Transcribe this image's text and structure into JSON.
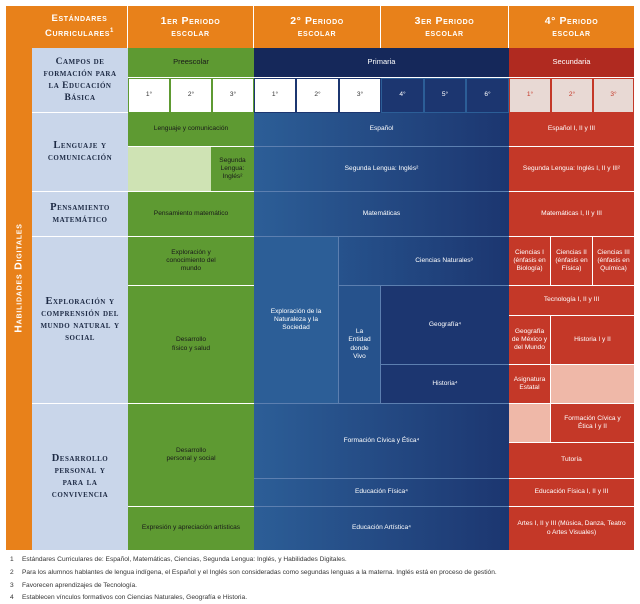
{
  "side_label": "Habilidades Digitales",
  "header": {
    "curriculum_standards": "Estándares Curriculares",
    "curriculum_standards_sup": "1",
    "period1": "1er Periodo escolar",
    "period2": "2° Periodo escolar",
    "period3": "3er Periodo escolar",
    "period4": "4° Periodo escolar"
  },
  "row_labels": {
    "campos": "Campos de formación para la Educación Básica",
    "lenguaje": "Lenguaje y comunicación",
    "pensamiento": "Pensamiento matemático",
    "exploracion": "Exploración y comprensión del mundo natural y social",
    "desarrollo": "Desarrollo personal y para la convivencia"
  },
  "levels": {
    "preescolar": "Preescolar",
    "primaria": "Primaria",
    "secundaria": "Secundaria"
  },
  "grades": {
    "pre": [
      "1°",
      "2°",
      "3°"
    ],
    "pri": [
      "1°",
      "2°",
      "3°",
      "4°",
      "5°",
      "6°"
    ],
    "sec": [
      "1°",
      "2°",
      "3°"
    ]
  },
  "cells": {
    "lenguaje_pre": "Lenguaje y comunicación",
    "espanol_pri": "Español",
    "espanol_sec": "Español I, II y III",
    "segunda_pre": "Segunda Lengua: Inglés²",
    "segunda_pri": "Segunda Lengua: Inglés²",
    "segunda_sec": "Segunda Lengua: Inglés I, II y III²",
    "pensamiento_pre": "Pensamiento matemático",
    "matematicas_pri": "Matemáticas",
    "matematicas_sec": "Matemáticas I, II y III",
    "exploracion_pre": "Exploración y conocimiento del mundo",
    "exploracion_pri": "Exploración de la Naturaleza y la Sociedad",
    "entidad_pri": "La Entidad donde Vivo",
    "ciencias_pri": "Ciencias Naturales³",
    "geografia_pri": "Geografía⁴",
    "historia_pri": "Historia⁴",
    "ciencias1_sec": "Ciencias I (énfasis en Biología)",
    "ciencias2_sec": "Ciencias II (énfasis en Física)",
    "ciencias3_sec": "Ciencias III (énfasis en Química)",
    "tecnologia_sec": "Tecnología I, II y III",
    "geografia_sec": "Geografía de México y del Mundo",
    "historia_sec": "Historia I y II",
    "asignatura_sec": "Asignatura Estatal",
    "desarrollo_fisico_pre": "Desarrollo físico y salud",
    "desarrollo_personal_pre": "Desarrollo personal y social",
    "expresion_pre": "Expresión y apreciación artísticas",
    "formacion_pri": "Formación Cívica y Ética⁴",
    "formacion_sec": "Formación Cívica y Ética I y II",
    "tutoria_sec": "Tutoría",
    "edfisica_pri": "Educación Física⁴",
    "edfisica_sec": "Educación Física I, II y III",
    "edartistica_pri": "Educación Artística⁴",
    "artes_sec": "Artes I, II y III (Música, Danza, Teatro o Artes Visuales)"
  },
  "footnotes": [
    {
      "num": "1",
      "text": "Estándares Curriculares de: Español, Matemáticas, Ciencias, Segunda Lengua: Inglés, y Habilidades Digitales."
    },
    {
      "num": "2",
      "text": "Para los alumnos hablantes de lengua indígena, el Español y el Inglés son consideradas como segundas lenguas a la materna. Inglés está en proceso de gestión."
    },
    {
      "num": "3",
      "text": "Favorecen aprendizajes de Tecnología."
    },
    {
      "num": "4",
      "text": "Establecen vínculos formativos con Ciencias Naturales, Geografía e Historia."
    }
  ],
  "colors": {
    "header_orange": "#e8811a",
    "label_bg": "#c9d6ea",
    "green": "#5e9a32",
    "green_light": "#cfe3b4",
    "navy": "#1c3670",
    "navy_mid": "#234a86",
    "blue": "#2c5e97",
    "red": "#c43828",
    "red_light": "#efb8a8"
  }
}
